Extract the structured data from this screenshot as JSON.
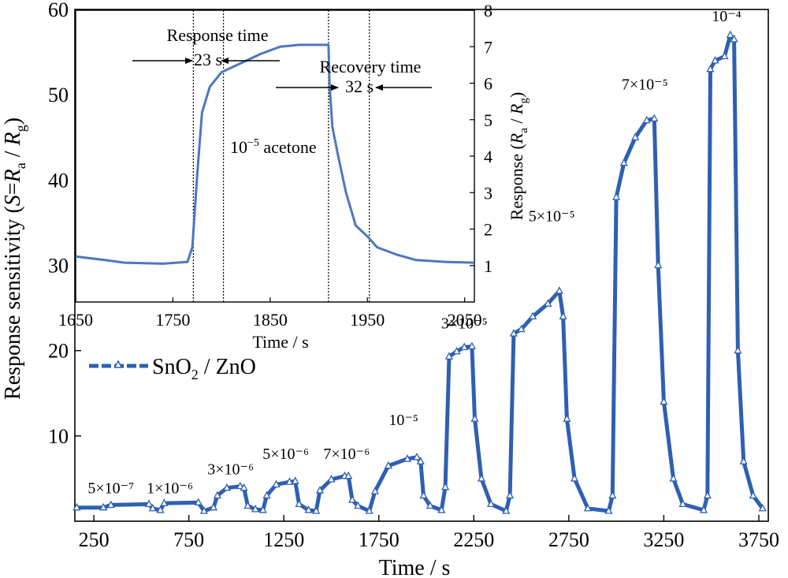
{
  "chart_data": [
    {
      "type": "line",
      "xlabel": "Time / s",
      "ylabel": "Response sensitivity (S=R_a / R_g)",
      "xlim": [
        150,
        3800
      ],
      "ylim": [
        0,
        60
      ],
      "xticks": [
        250,
        750,
        1250,
        1750,
        2250,
        2750,
        3250,
        3750
      ],
      "yticks": [
        10,
        20,
        30,
        40,
        50,
        60
      ],
      "legend": {
        "label": "SnO₂ / ZnO",
        "position": "upper-left"
      },
      "color": "#2e5fb3",
      "marker": "triangle-open",
      "series": [
        {
          "name": "SnO₂ / ZnO",
          "points": [
            [
              160,
              1.6
            ],
            [
              300,
              1.6
            ],
            [
              340,
              1.9
            ],
            [
              540,
              2.0
            ],
            [
              560,
              1.5
            ],
            [
              600,
              1.3
            ],
            [
              620,
              2.1
            ],
            [
              800,
              2.2
            ],
            [
              830,
              1.2
            ],
            [
              880,
              1.6
            ],
            [
              900,
              3.0
            ],
            [
              950,
              3.9
            ],
            [
              1020,
              4.1
            ],
            [
              1040,
              3.9
            ],
            [
              1060,
              1.8
            ],
            [
              1100,
              1.4
            ],
            [
              1140,
              1.3
            ],
            [
              1160,
              3.0
            ],
            [
              1210,
              4.3
            ],
            [
              1280,
              4.6
            ],
            [
              1310,
              4.7
            ],
            [
              1330,
              2.0
            ],
            [
              1380,
              1.3
            ],
            [
              1420,
              1.2
            ],
            [
              1440,
              3.6
            ],
            [
              1500,
              4.9
            ],
            [
              1570,
              5.3
            ],
            [
              1590,
              5.3
            ],
            [
              1610,
              2.5
            ],
            [
              1640,
              1.8
            ],
            [
              1700,
              1.2
            ],
            [
              1730,
              3.5
            ],
            [
              1800,
              6.5
            ],
            [
              1900,
              7.3
            ],
            [
              1950,
              7.5
            ],
            [
              1970,
              7.0
            ],
            [
              1985,
              3.0
            ],
            [
              2020,
              1.8
            ],
            [
              2080,
              1.3
            ],
            [
              2100,
              4.0
            ],
            [
              2120,
              19.3
            ],
            [
              2160,
              19.9
            ],
            [
              2200,
              20.4
            ],
            [
              2240,
              20.5
            ],
            [
              2255,
              12.0
            ],
            [
              2290,
              5.0
            ],
            [
              2340,
              2.0
            ],
            [
              2420,
              1.2
            ],
            [
              2440,
              3.0
            ],
            [
              2460,
              22.0
            ],
            [
              2500,
              22.5
            ],
            [
              2560,
              24.0
            ],
            [
              2640,
              25.5
            ],
            [
              2700,
              27.0
            ],
            [
              2720,
              24.0
            ],
            [
              2740,
              12.0
            ],
            [
              2780,
              5.0
            ],
            [
              2850,
              1.5
            ],
            [
              2960,
              1.2
            ],
            [
              2980,
              3.0
            ],
            [
              3000,
              38.0
            ],
            [
              3040,
              42.0
            ],
            [
              3100,
              45.0
            ],
            [
              3160,
              47.0
            ],
            [
              3200,
              47.2
            ],
            [
              3220,
              30.0
            ],
            [
              3250,
              14.0
            ],
            [
              3300,
              5.0
            ],
            [
              3350,
              2.0
            ],
            [
              3460,
              1.3
            ],
            [
              3480,
              3.0
            ],
            [
              3495,
              53.0
            ],
            [
              3520,
              54.0
            ],
            [
              3570,
              54.5
            ],
            [
              3600,
              57.0
            ],
            [
              3620,
              56.5
            ],
            [
              3640,
              20.0
            ],
            [
              3670,
              7.0
            ],
            [
              3720,
              3.0
            ],
            [
              3770,
              1.5
            ]
          ]
        }
      ],
      "annotations": [
        {
          "label": "5×10⁻⁷",
          "x": 340,
          "y": 3.3
        },
        {
          "label": "1×10⁻⁶",
          "x": 650,
          "y": 3.3
        },
        {
          "label": "3×10⁻⁶",
          "x": 970,
          "y": 5.5
        },
        {
          "label": "5×10⁻⁶",
          "x": 1260,
          "y": 7.3
        },
        {
          "label": "7×10⁻⁶",
          "x": 1580,
          "y": 7.3
        },
        {
          "label": "10⁻⁵",
          "x": 1880,
          "y": 11.3
        },
        {
          "label": "3×10⁻⁵",
          "x": 2200,
          "y": 22.6
        },
        {
          "label": "5×10⁻⁵",
          "x": 2660,
          "y": 35.2
        },
        {
          "label": "7×10⁻⁵",
          "x": 3150,
          "y": 50.6
        },
        {
          "label": "10⁻⁴",
          "x": 3580,
          "y": 58.6
        }
      ]
    },
    {
      "type": "line",
      "xlabel": "Time / s",
      "ylabel": "Response (R_a / R_g)",
      "xlim": [
        1650,
        2060
      ],
      "ylim": [
        0,
        8
      ],
      "xticks": [
        1650,
        1750,
        1850,
        1950,
        2050
      ],
      "yticks": [
        1,
        2,
        3,
        4,
        5,
        6,
        7,
        8
      ],
      "color": "#4f76bf",
      "series": [
        {
          "name": "",
          "points": [
            [
              1650,
              1.25
            ],
            [
              1680,
              1.15
            ],
            [
              1700,
              1.08
            ],
            [
              1740,
              1.05
            ],
            [
              1765,
              1.1
            ],
            [
              1770,
              1.5
            ],
            [
              1775,
              3.5
            ],
            [
              1780,
              5.2
            ],
            [
              1788,
              5.9
            ],
            [
              1800,
              6.3
            ],
            [
              1820,
              6.55
            ],
            [
              1840,
              6.8
            ],
            [
              1860,
              7.0
            ],
            [
              1880,
              7.05
            ],
            [
              1910,
              7.05
            ],
            [
              1911,
              6.0
            ],
            [
              1914,
              4.8
            ],
            [
              1920,
              4.0
            ],
            [
              1928,
              3.0
            ],
            [
              1938,
              2.1
            ],
            [
              1950,
              1.8
            ],
            [
              1960,
              1.5
            ],
            [
              1980,
              1.3
            ],
            [
              2000,
              1.15
            ],
            [
              2030,
              1.1
            ],
            [
              2060,
              1.08
            ]
          ]
        }
      ],
      "vlines": [
        1771,
        1802,
        1910,
        1952
      ],
      "annotations": [
        {
          "label": "Response time"
        },
        {
          "label": "23 s"
        },
        {
          "label": "Recovery time"
        },
        {
          "label": "32 s"
        },
        {
          "label": "10⁻⁵ acetone"
        }
      ]
    }
  ]
}
